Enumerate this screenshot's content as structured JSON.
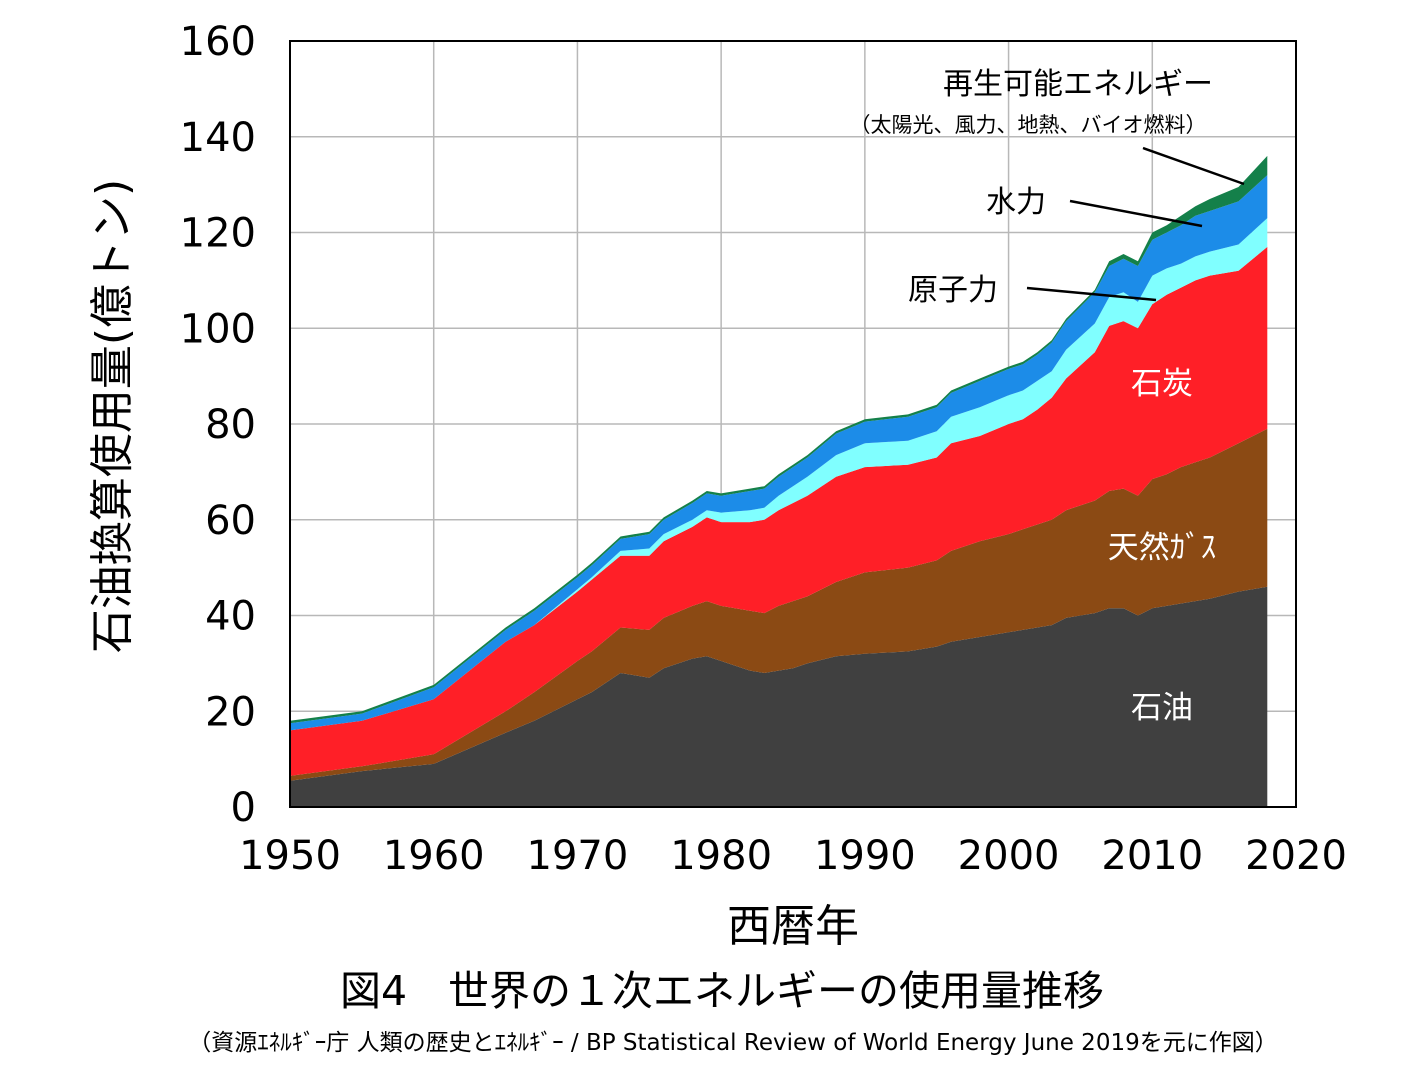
{
  "chart_data": {
    "type": "area",
    "stacked": true,
    "title": "図4　世界の１次エネルギーの使用量推移",
    "source": "（資源ｴﾈﾙｷﾞｰ庁 人類の歴史とｴﾈﾙｷﾞｰ / BP Statistical Review of World Energy June 2019を元に作図）",
    "xlabel": "西暦年",
    "ylabel": "石油換算使用量(億トン)",
    "xlim": [
      1950,
      2020
    ],
    "ylim": [
      0,
      160
    ],
    "xticks": [
      1950,
      1960,
      1970,
      1980,
      1990,
      2000,
      2010,
      2020
    ],
    "yticks": [
      0,
      20,
      40,
      60,
      80,
      100,
      120,
      140,
      160
    ],
    "grid": true,
    "x": [
      1950,
      1955,
      1960,
      1965,
      1967,
      1970,
      1971,
      1973,
      1975,
      1976,
      1978,
      1979,
      1980,
      1982,
      1983,
      1984,
      1985,
      1986,
      1988,
      1990,
      1993,
      1995,
      1996,
      1998,
      2000,
      2001,
      2002,
      2003,
      2004,
      2006,
      2007,
      2008,
      2009,
      2010,
      2011,
      2012,
      2013,
      2014,
      2016,
      2018
    ],
    "series": [
      {
        "name": "石油",
        "color": "#404040",
        "values": [
          5.5,
          7.5,
          9,
          15.5,
          18,
          22.5,
          24,
          28,
          27,
          29,
          31,
          31.5,
          30.5,
          28.5,
          28,
          28.5,
          29,
          30,
          31.5,
          32,
          32.5,
          33.5,
          34.5,
          35.5,
          36.5,
          37,
          37.5,
          38,
          39.5,
          40.5,
          41.5,
          41.5,
          40,
          41.5,
          42,
          42.5,
          43,
          43.5,
          45,
          46
        ]
      },
      {
        "name": "天然ｶﾞｽ",
        "color": "#8b4a14",
        "values": [
          1,
          1,
          2,
          4.5,
          6,
          8,
          8.5,
          9.5,
          10,
          10.5,
          11,
          11.5,
          11.5,
          12.5,
          12.5,
          13.5,
          14,
          14,
          15.5,
          17,
          17.5,
          18,
          19,
          20,
          20.5,
          21,
          21.5,
          22,
          22.5,
          23.5,
          24.5,
          25,
          25,
          27,
          27.5,
          28.5,
          29,
          29.5,
          31,
          33
        ]
      },
      {
        "name": "石炭",
        "color": "#ff1f27",
        "values": [
          9.5,
          9.5,
          11.5,
          14.5,
          14,
          14.5,
          15,
          15,
          15.5,
          16,
          16.5,
          17.5,
          17.5,
          18.5,
          19.5,
          20,
          20.5,
          21,
          22,
          22,
          21.5,
          21.5,
          22.5,
          22,
          23,
          23,
          24,
          25.5,
          27.5,
          31,
          34.5,
          35,
          35,
          36.5,
          37.5,
          37.5,
          38,
          38,
          36,
          38
        ]
      },
      {
        "name": "原子力",
        "color": "#80ffff",
        "values": [
          0,
          0,
          0,
          0,
          0,
          0.5,
          0.5,
          1,
          1.5,
          1.5,
          1.5,
          1.5,
          2,
          2.5,
          2.5,
          3,
          3.5,
          4,
          4.5,
          5,
          5,
          5.5,
          5.5,
          6,
          6,
          6,
          6,
          5.5,
          6,
          6,
          6,
          6,
          5.5,
          6,
          5.5,
          5,
          5,
          5,
          5.5,
          6
        ]
      },
      {
        "name": "水力",
        "color": "#1c8ce8",
        "values": [
          1.5,
          1.5,
          2.5,
          2.5,
          3,
          2.5,
          2.5,
          2.5,
          3,
          3,
          3.5,
          3.5,
          3.5,
          4,
          4,
          4,
          4,
          4,
          4.5,
          4.5,
          5,
          5,
          5,
          5.5,
          5.5,
          5.5,
          5.5,
          6,
          6,
          6.5,
          6.5,
          7,
          7.5,
          7.5,
          7.5,
          8,
          8.5,
          8.5,
          9,
          9
        ]
      },
      {
        "name": "再生可能エネルギー",
        "color": "#14804a",
        "values": [
          0.5,
          0.5,
          0.5,
          0.5,
          0.5,
          0.5,
          0.5,
          0.5,
          0.5,
          0.5,
          0.5,
          0.5,
          0.5,
          0.5,
          0.5,
          0.5,
          0.5,
          0.5,
          0.5,
          0.5,
          0.5,
          0.5,
          0.5,
          0.5,
          0.5,
          0.5,
          0.5,
          0.5,
          0.5,
          0.5,
          1,
          1,
          1,
          1.5,
          1.5,
          2,
          2,
          2.5,
          3,
          4
        ]
      }
    ],
    "annotations": [
      {
        "text": "再生可能エネルギー",
        "sub": "（太陽光、風力、地熱、バイオ燃料）",
        "series": "再生可能エネルギー"
      },
      {
        "text": "水力",
        "series": "水力"
      },
      {
        "text": "原子力",
        "series": "原子力"
      },
      {
        "text": "石炭",
        "series": "石炭"
      },
      {
        "text": "天然ｶﾞｽ",
        "series": "天然ｶﾞｽ"
      },
      {
        "text": "石油",
        "series": "石油"
      }
    ]
  }
}
